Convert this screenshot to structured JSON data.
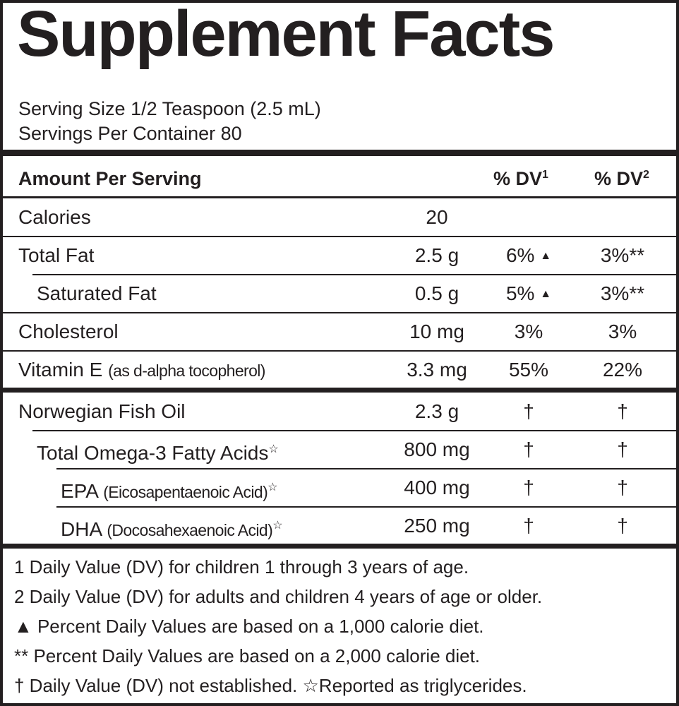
{
  "title": "Supplement Facts",
  "serving": [
    "Serving Size 1/2 Teaspoon (2.5 mL)",
    "Servings Per Container 80"
  ],
  "header": {
    "amount": "Amount Per Serving",
    "dv": [
      {
        "text": "% DV",
        "sup": "1"
      },
      {
        "text": "% DV",
        "sup": "2"
      }
    ]
  },
  "rows": [
    {
      "name": "Calories",
      "amount": "20"
    },
    {
      "name": "Total Fat",
      "amount": "2.5 g",
      "dv1": "6%",
      "dv1_mark": "▲",
      "dv2": "3%**"
    },
    {
      "name": "Saturated Fat",
      "amount": "0.5 g",
      "dv1": "5%",
      "dv1_mark": "▲",
      "dv2": "3%**"
    },
    {
      "name": "Cholesterol",
      "amount": "10 mg",
      "dv1": "3%",
      "dv2": "3%"
    },
    {
      "name": "Vitamin E",
      "note": "(as d-alpha tocopherol)",
      "amount": "3.3 mg",
      "dv1": "55%",
      "dv2": "22%"
    },
    {
      "name": "Norwegian Fish Oil",
      "amount": "2.3 g",
      "dv1": "†",
      "dv2": "†"
    },
    {
      "name": "Total Omega-3 Fatty Acids",
      "sup": "☆",
      "amount": "800 mg",
      "dv1": "†",
      "dv2": "†"
    },
    {
      "name": "EPA",
      "note": "(Eicosapentaenoic Acid)",
      "sup": "☆",
      "amount": "400 mg",
      "dv1": "†",
      "dv2": "†"
    },
    {
      "name": "DHA",
      "note": "(Docosahexaenoic Acid)",
      "sup": "☆",
      "amount": "250 mg",
      "dv1": "†",
      "dv2": "†"
    }
  ],
  "footnotes": [
    "1 Daily Value (DV) for children 1 through 3 years of age.",
    "2 Daily Value (DV) for adults and children 4 years of age or older.",
    "▲ Percent Daily Values are based on a 1,000 calorie diet.",
    "** Percent Daily Values are based on a 2,000 calorie diet.",
    "† Daily Value (DV) not established.  ☆Reported as triglycerides."
  ]
}
